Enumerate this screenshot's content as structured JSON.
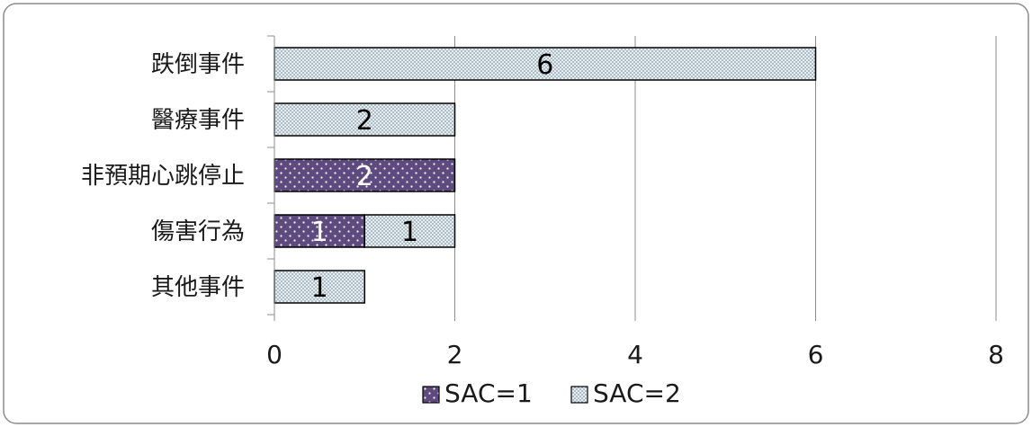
{
  "chart_data": {
    "type": "bar",
    "orientation": "horizontal",
    "stacked": true,
    "categories": [
      "跌倒事件",
      "醫療事件",
      "非預期心跳停止",
      "傷害行為",
      "其他事件"
    ],
    "series": [
      {
        "name": "SAC=1",
        "values": [
          0,
          0,
          2,
          1,
          0
        ],
        "color": "#5e4a7e",
        "pattern": "dots-on-purple"
      },
      {
        "name": "SAC=2",
        "values": [
          6,
          2,
          0,
          1,
          1
        ],
        "color": "#dfe9ef",
        "pattern": "fine-dots-on-light"
      }
    ],
    "xlim": [
      0,
      8
    ],
    "x_ticks": [
      "0",
      "2",
      "4",
      "6",
      "8"
    ],
    "grid": "vertical",
    "legend": "bottom",
    "data_labels": true
  }
}
